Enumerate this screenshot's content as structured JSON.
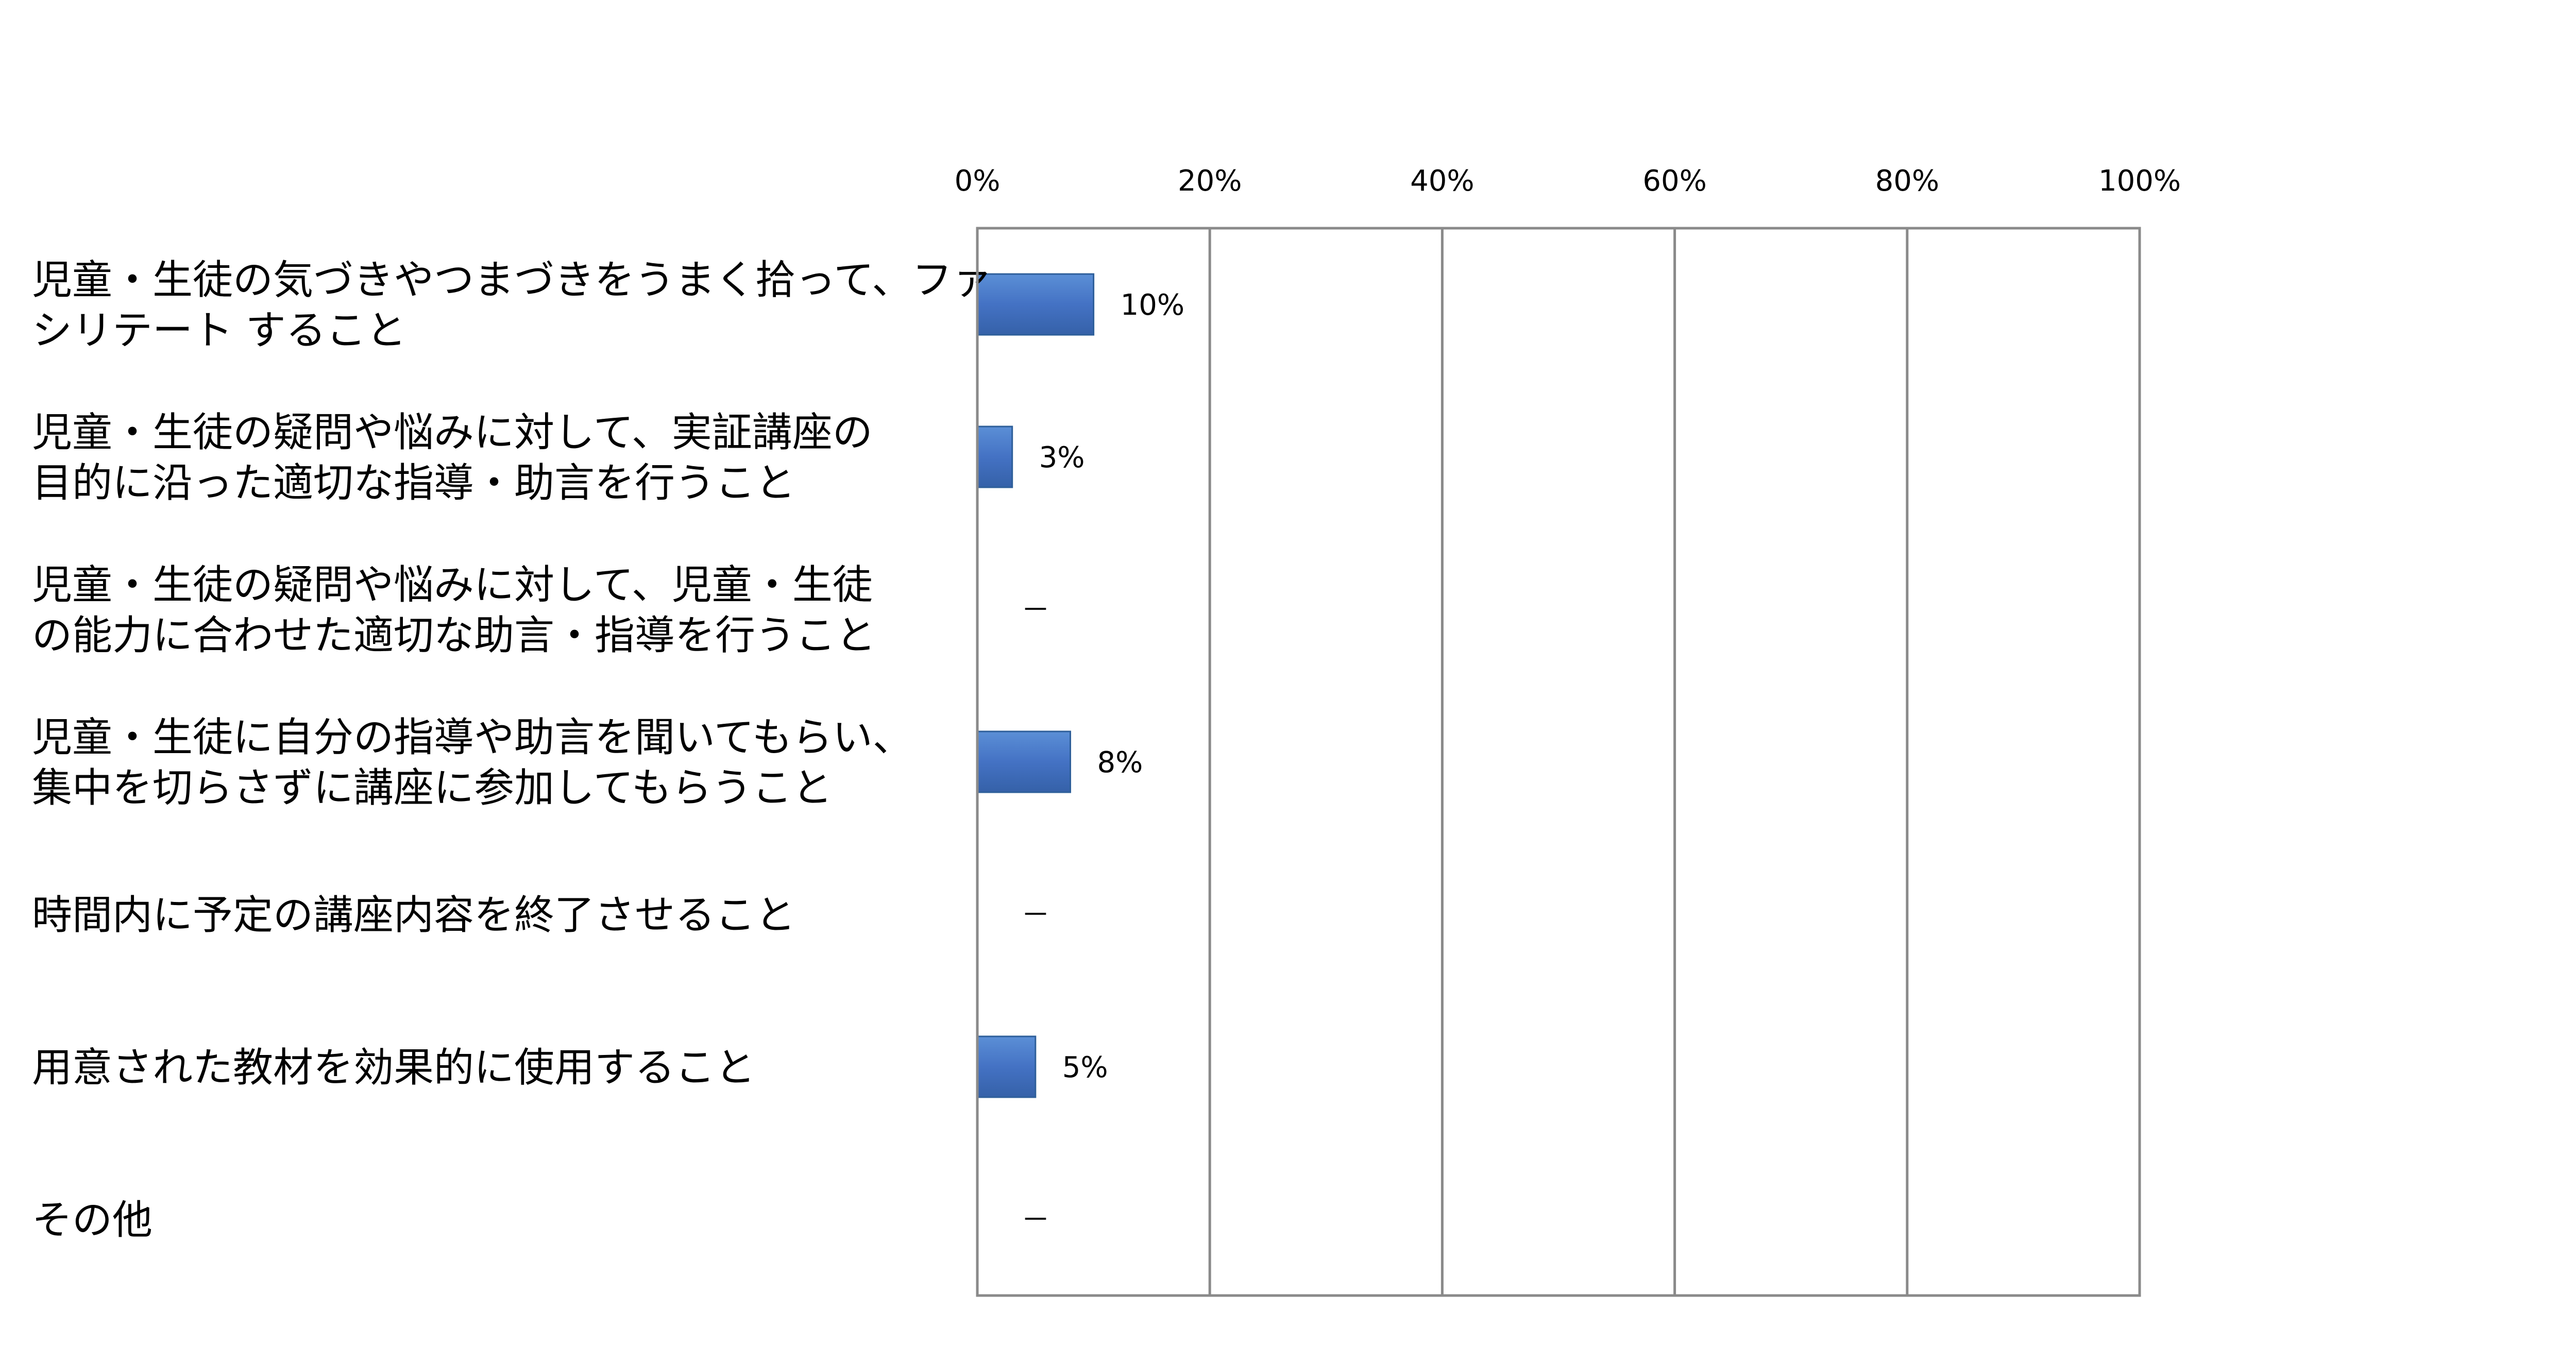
{
  "chart_data": {
    "type": "bar",
    "orientation": "horizontal",
    "title": "",
    "xlabel": "",
    "ylabel": "",
    "xlim": [
      0,
      100
    ],
    "x_ticks": [
      "0%",
      "20%",
      "40%",
      "60%",
      "80%",
      "100%"
    ],
    "x_tick_values": [
      0,
      20,
      40,
      60,
      80,
      100
    ],
    "x_axis_position": "top",
    "grid": true,
    "legend": "none",
    "bar_color": "#4472c4",
    "categories": [
      [
        "児童・生徒の気づきやつまづきをうまく拾って、ファ",
        "シリテート すること"
      ],
      [
        "児童・生徒の疑問や悩みに対して、実証講座の",
        "目的に沿った適切な指導・助言を行うこと"
      ],
      [
        "児童・生徒の疑問や悩みに対して、児童・生徒",
        "の能力に合わせた適切な助言・指導を行うこと"
      ],
      [
        "児童・生徒に自分の指導や助言を聞いてもらい、",
        "集中を切らさずに講座に参加してもらうこと"
      ],
      [
        "時間内に予定の講座内容を終了させること"
      ],
      [
        "用意された教材を効果的に使用すること"
      ],
      [
        "その他"
      ]
    ],
    "values": [
      10,
      3,
      0,
      8,
      0,
      5,
      0
    ],
    "value_labels": [
      "10%",
      "3%",
      "－",
      "8%",
      "－",
      "5%",
      "－"
    ]
  }
}
